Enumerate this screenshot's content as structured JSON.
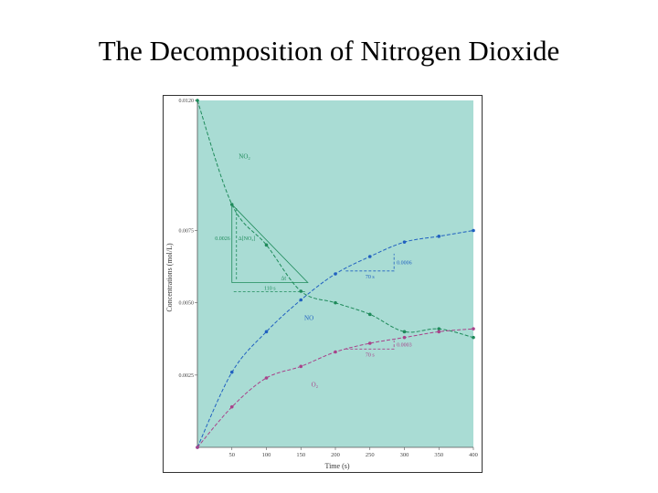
{
  "slide": {
    "title": "The Decomposition of Nitrogen Dioxide"
  },
  "chart_data": {
    "type": "line",
    "xlabel": "Time (s)",
    "ylabel": "Concentrations (mol/L)",
    "xlim": [
      0,
      400
    ],
    "ylim": [
      0,
      0.012
    ],
    "xticks": [
      50,
      100,
      150,
      200,
      250,
      300,
      350,
      400
    ],
    "xtick_labels": [
      "50",
      "100",
      "150",
      "200",
      "250",
      "300",
      "350",
      "400"
    ],
    "yticks": [
      0.0025,
      0.005,
      0.0075,
      0.012
    ],
    "ytick_labels": [
      "0.0025",
      "0.0050",
      "0.0075",
      "0.0120"
    ],
    "background_color": "#a9dcd4",
    "grid": false,
    "series": [
      {
        "name": "NO2",
        "color": "#1e8a5a",
        "x": [
          0,
          50,
          100,
          150,
          200,
          250,
          300,
          350,
          400
        ],
        "y": [
          0.012,
          0.0084,
          0.007,
          0.0054,
          0.005,
          0.0046,
          0.004,
          0.0041,
          0.0038
        ]
      },
      {
        "name": "NO",
        "color": "#2060c0",
        "x": [
          0,
          50,
          100,
          150,
          200,
          250,
          300,
          350,
          400
        ],
        "y": [
          0.0,
          0.0026,
          0.004,
          0.0051,
          0.006,
          0.0066,
          0.0071,
          0.0073,
          0.0075
        ]
      },
      {
        "name": "O2",
        "color": "#a8428a",
        "x": [
          0,
          50,
          100,
          150,
          200,
          250,
          300,
          350,
          400
        ],
        "y": [
          0.0,
          0.0014,
          0.0024,
          0.0028,
          0.0033,
          0.0036,
          0.0038,
          0.004,
          0.0041
        ]
      }
    ],
    "annotations": {
      "no2_label": "NO₂",
      "no_label": "NO",
      "o2_label": "O₂",
      "no2_triangle": {
        "vertical_value": "0.0026",
        "vertical_label": "Δ[NO₂]",
        "horizontal_small_label": "Δt",
        "horizontal_label": "110 s"
      },
      "no_triangle": {
        "vertical_label": "0.0006",
        "horizontal_label": "70 s"
      },
      "o2_triangle": {
        "vertical_label": "0.0003",
        "horizontal_label": "70 s"
      }
    }
  }
}
